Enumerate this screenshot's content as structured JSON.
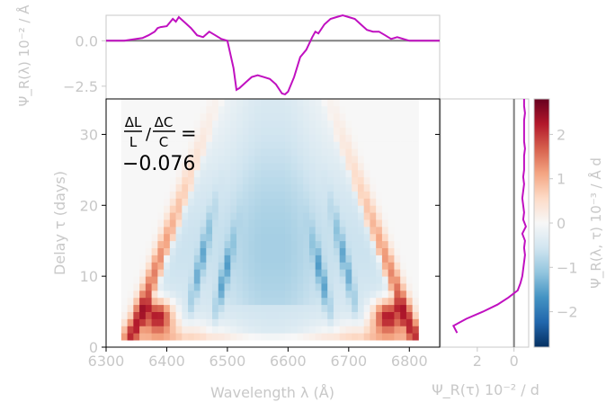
{
  "chart_data": {
    "type": "heatmap",
    "annotation": {
      "lines": [
        "ΔL/L / ΔC/C =",
        "−0.076"
      ],
      "frac1_num": "ΔL",
      "frac1_den": "L",
      "frac2_num": "ΔC",
      "frac2_den": "C",
      "suffix": "=",
      "value": "−0.076"
    },
    "main": {
      "xlabel": "Wavelength λ (Å)",
      "ylabel": "Delay τ (days)",
      "xlim": [
        6300,
        6850
      ],
      "ylim": [
        0,
        35
      ],
      "xticks": [
        6300,
        6400,
        6500,
        6600,
        6700,
        6800
      ],
      "yticks": [
        0,
        10,
        20,
        30
      ],
      "grid": {
        "x0": 6330,
        "x1": 6810,
        "dx": 10,
        "t0": 1.5,
        "t1": 35,
        "dt": 1
      },
      "colormap": "RdBu_r",
      "vmin": -2.8,
      "vmax": 2.8
    },
    "top": {
      "ylabel": "Ψ_R(λ) 10⁻² / Å",
      "yticks": [
        0.0,
        -2.5
      ],
      "ytick_labels": [
        "0.0",
        "−2.5"
      ],
      "ylim": [
        -3.2,
        1.4
      ],
      "x": [
        6300,
        6330,
        6350,
        6360,
        6370,
        6380,
        6385,
        6390,
        6400,
        6410,
        6415,
        6420,
        6430,
        6440,
        6450,
        6460,
        6470,
        6480,
        6490,
        6500,
        6510,
        6515,
        6520,
        6530,
        6540,
        6550,
        6560,
        6570,
        6580,
        6590,
        6595,
        6600,
        6610,
        6620,
        6630,
        6640,
        6645,
        6650,
        6660,
        6670,
        6680,
        6690,
        6700,
        6710,
        6720,
        6730,
        6740,
        6750,
        6760,
        6770,
        6780,
        6800,
        6820,
        6850
      ],
      "y": [
        0,
        0,
        0.1,
        0.15,
        0.3,
        0.5,
        0.7,
        0.75,
        0.8,
        1.2,
        1.05,
        1.3,
        1.0,
        0.7,
        0.3,
        0.2,
        0.5,
        0.3,
        0.1,
        0,
        -1.5,
        -2.7,
        -2.6,
        -2.3,
        -2.0,
        -1.9,
        -2.0,
        -2.1,
        -2.4,
        -2.9,
        -2.95,
        -2.8,
        -2.0,
        -0.9,
        -0.5,
        0.2,
        0.5,
        0.4,
        0.9,
        1.2,
        1.3,
        1.4,
        1.3,
        1.2,
        0.9,
        0.6,
        0.5,
        0.5,
        0.3,
        0.1,
        0.2,
        0,
        0,
        0
      ]
    },
    "right": {
      "xlabel": "Ψ_R(τ) 10⁻² / d",
      "xticks": [
        2,
        0
      ],
      "xlim": [
        4.0,
        -0.8
      ],
      "tau": [
        2,
        3,
        4,
        5,
        6,
        7,
        8,
        9,
        10,
        11,
        12,
        13,
        14,
        15,
        16,
        17,
        18,
        19,
        20,
        21,
        22,
        23,
        24,
        25,
        26,
        27,
        28,
        29,
        30,
        31,
        32,
        33,
        34,
        35
      ],
      "psi": [
        3.1,
        3.3,
        2.6,
        1.7,
        0.9,
        0.3,
        -0.2,
        -0.35,
        -0.45,
        -0.5,
        -0.55,
        -0.6,
        -0.55,
        -0.6,
        -0.45,
        -0.65,
        -0.5,
        -0.55,
        -0.5,
        -0.45,
        -0.5,
        -0.55,
        -0.5,
        -0.55,
        -0.55,
        -0.55,
        -0.6,
        -0.55,
        -0.55,
        -0.55,
        -0.55,
        -0.6,
        -0.55,
        -0.55
      ]
    },
    "colorbar": {
      "label": "Ψ_R(λ, τ) 10⁻³ / Å d",
      "ticks": [
        2,
        1,
        0,
        -1,
        -2
      ],
      "tick_labels": [
        "2",
        "1",
        "0",
        "−1",
        "−2"
      ],
      "min": -2.8,
      "max": 2.8
    },
    "colors": {
      "line": "#c010c0",
      "zero_line": "#808080",
      "label": "#c8c8c8"
    }
  }
}
